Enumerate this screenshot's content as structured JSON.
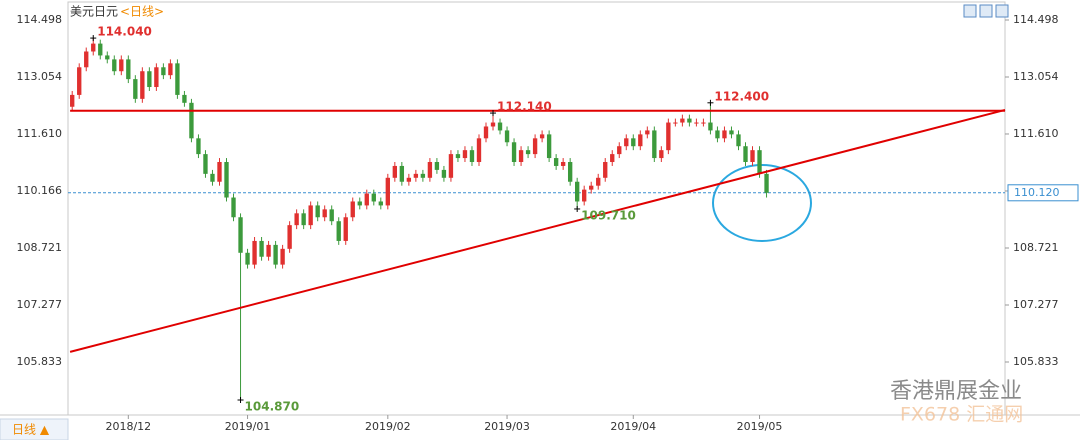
{
  "chart_data": {
    "type": "candlestick",
    "title": "美元日元",
    "period": "<日线>",
    "period_tab": "日线 ▲",
    "watermarks": [
      "香港鼎展金业",
      "FX678 汇通网"
    ],
    "up_color": "#e0302f",
    "down_color": "#3c9a3c",
    "ylim": [
      104.49,
      114.878
    ],
    "xlim": [
      -0.6,
      133
    ],
    "yticks": [
      114.498,
      113.054,
      {
        "value": 111.61,
        "label": "111.610"
      },
      110.166,
      108.721,
      107.277,
      105.833
    ],
    "xticks": [
      {
        "value": 8,
        "label": "2018/12"
      },
      {
        "value": 25,
        "label": "2019/01"
      },
      {
        "value": 45,
        "label": "2019/02"
      },
      {
        "value": 62,
        "label": "2019/03"
      },
      {
        "value": 80,
        "label": "2019/04"
      },
      {
        "value": 98,
        "label": "2019/05"
      }
    ],
    "ohlc": [
      [
        112.3,
        112.7,
        112.2,
        112.6
      ],
      [
        112.6,
        113.4,
        112.5,
        113.3
      ],
      [
        113.3,
        113.8,
        113.2,
        113.7
      ],
      [
        113.7,
        114.04,
        113.6,
        113.9
      ],
      [
        113.9,
        114.0,
        113.5,
        113.6
      ],
      [
        113.6,
        113.7,
        113.4,
        113.5
      ],
      [
        113.5,
        113.6,
        113.1,
        113.2
      ],
      [
        113.2,
        113.6,
        113.1,
        113.5
      ],
      [
        113.5,
        113.6,
        112.9,
        113.0
      ],
      [
        113.0,
        113.1,
        112.4,
        112.5
      ],
      [
        112.5,
        113.3,
        112.4,
        113.2
      ],
      [
        113.2,
        113.3,
        112.7,
        112.8
      ],
      [
        112.8,
        113.4,
        112.7,
        113.3
      ],
      [
        113.3,
        113.4,
        113.0,
        113.1
      ],
      [
        113.1,
        113.5,
        113.0,
        113.4
      ],
      [
        113.4,
        113.5,
        112.5,
        112.6
      ],
      [
        112.6,
        112.7,
        112.3,
        112.4
      ],
      [
        112.4,
        112.5,
        111.4,
        111.5
      ],
      [
        111.5,
        111.6,
        111.0,
        111.1
      ],
      [
        111.1,
        111.2,
        110.5,
        110.6
      ],
      [
        110.6,
        110.7,
        110.3,
        110.4
      ],
      [
        110.4,
        111.0,
        110.3,
        110.9
      ],
      [
        110.9,
        111.0,
        109.9,
        110.0
      ],
      [
        110.0,
        110.1,
        109.4,
        109.5
      ],
      [
        109.5,
        109.6,
        104.87,
        108.6
      ],
      [
        108.6,
        108.7,
        108.2,
        108.3
      ],
      [
        108.3,
        109.0,
        108.2,
        108.9
      ],
      [
        108.9,
        109.0,
        108.4,
        108.5
      ],
      [
        108.5,
        108.9,
        108.4,
        108.8
      ],
      [
        108.8,
        108.9,
        108.2,
        108.3
      ],
      [
        108.3,
        108.8,
        108.2,
        108.7
      ],
      [
        108.7,
        109.4,
        108.6,
        109.3
      ],
      [
        109.3,
        109.7,
        109.2,
        109.6
      ],
      [
        109.6,
        109.7,
        109.2,
        109.3
      ],
      [
        109.3,
        109.9,
        109.2,
        109.8
      ],
      [
        109.8,
        109.9,
        109.4,
        109.5
      ],
      [
        109.5,
        109.8,
        109.4,
        109.7
      ],
      [
        109.7,
        109.8,
        109.3,
        109.4
      ],
      [
        109.4,
        109.5,
        108.8,
        108.9
      ],
      [
        108.9,
        109.6,
        108.8,
        109.5
      ],
      [
        109.5,
        110.0,
        109.4,
        109.9
      ],
      [
        109.9,
        110.0,
        109.7,
        109.8
      ],
      [
        109.8,
        110.2,
        109.7,
        110.1
      ],
      [
        110.1,
        110.2,
        109.8,
        109.9
      ],
      [
        109.9,
        110.0,
        109.7,
        109.8
      ],
      [
        109.8,
        110.6,
        109.7,
        110.5
      ],
      [
        110.5,
        110.9,
        110.4,
        110.8
      ],
      [
        110.8,
        110.9,
        110.3,
        110.4
      ],
      [
        110.4,
        110.6,
        110.3,
        110.5
      ],
      [
        110.5,
        110.7,
        110.4,
        110.6
      ],
      [
        110.6,
        110.7,
        110.4,
        110.5
      ],
      [
        110.5,
        111.0,
        110.4,
        110.9
      ],
      [
        110.9,
        111.0,
        110.6,
        110.7
      ],
      [
        110.7,
        110.8,
        110.4,
        110.5
      ],
      [
        110.5,
        111.2,
        110.4,
        111.1
      ],
      [
        111.1,
        111.2,
        110.9,
        111.0
      ],
      [
        111.0,
        111.3,
        110.9,
        111.2
      ],
      [
        111.2,
        111.3,
        110.8,
        110.9
      ],
      [
        110.9,
        111.6,
        110.8,
        111.5
      ],
      [
        111.5,
        111.9,
        111.4,
        111.8
      ],
      [
        111.8,
        112.14,
        111.7,
        111.9
      ],
      [
        111.9,
        112.0,
        111.6,
        111.7
      ],
      [
        111.7,
        111.8,
        111.3,
        111.4
      ],
      [
        111.4,
        111.5,
        110.8,
        110.9
      ],
      [
        110.9,
        111.3,
        110.8,
        111.2
      ],
      [
        111.2,
        111.3,
        111.0,
        111.1
      ],
      [
        111.1,
        111.6,
        111.0,
        111.5
      ],
      [
        111.5,
        111.7,
        111.4,
        111.6
      ],
      [
        111.6,
        111.7,
        110.9,
        111.0
      ],
      [
        111.0,
        111.1,
        110.7,
        110.8
      ],
      [
        110.8,
        111.0,
        110.7,
        110.9
      ],
      [
        110.9,
        111.0,
        110.3,
        110.4
      ],
      [
        110.4,
        110.5,
        109.71,
        109.9
      ],
      [
        109.9,
        110.3,
        109.8,
        110.2
      ],
      [
        110.2,
        110.4,
        110.1,
        110.3
      ],
      [
        110.3,
        110.6,
        110.2,
        110.5
      ],
      [
        110.5,
        111.0,
        110.4,
        110.9
      ],
      [
        110.9,
        111.2,
        110.8,
        111.1
      ],
      [
        111.1,
        111.4,
        111.0,
        111.3
      ],
      [
        111.3,
        111.6,
        111.2,
        111.5
      ],
      [
        111.5,
        111.6,
        111.2,
        111.3
      ],
      [
        111.3,
        111.7,
        111.2,
        111.6
      ],
      [
        111.6,
        111.8,
        111.5,
        111.7
      ],
      [
        111.7,
        111.8,
        110.9,
        111.0
      ],
      [
        111.0,
        111.3,
        110.9,
        111.2
      ],
      [
        111.2,
        112.0,
        111.1,
        111.9
      ],
      [
        111.9,
        112.0,
        111.8,
        111.9
      ],
      [
        111.9,
        112.1,
        111.8,
        112.0
      ],
      [
        112.0,
        112.1,
        111.8,
        111.9
      ],
      [
        111.9,
        112.0,
        111.8,
        111.9
      ],
      [
        111.9,
        112.0,
        111.8,
        111.9
      ],
      [
        111.9,
        112.4,
        111.6,
        111.7
      ],
      [
        111.7,
        111.8,
        111.4,
        111.5
      ],
      [
        111.5,
        111.8,
        111.4,
        111.7
      ],
      [
        111.7,
        111.8,
        111.5,
        111.6
      ],
      [
        111.6,
        111.7,
        111.2,
        111.3
      ],
      [
        111.3,
        111.4,
        110.8,
        110.9
      ],
      [
        110.9,
        111.3,
        110.8,
        111.2
      ],
      [
        111.2,
        111.3,
        110.5,
        110.6
      ],
      [
        110.6,
        110.7,
        110.0,
        110.12
      ]
    ],
    "annotations": [
      {
        "index": 3,
        "value": 114.04,
        "label": "114.040",
        "color": "#e0302f"
      },
      {
        "index": 60,
        "value": 112.14,
        "label": "112.140",
        "color": "#e0302f"
      },
      {
        "index": 91,
        "value": 112.4,
        "label": "112.400",
        "color": "#e0302f"
      },
      {
        "index": 72,
        "value": 109.71,
        "label": "109.710",
        "color": "#5a9a3a"
      },
      {
        "index": 24,
        "value": 104.87,
        "label": "104.870",
        "color": "#5a9a3a"
      }
    ],
    "trend_lines": [
      {
        "color": "#e00000",
        "x": [
          -0.3,
          133
        ],
        "y": [
          112.2,
          112.2
        ]
      },
      {
        "color": "#e00000",
        "x": [
          -0.3,
          133
        ],
        "y": [
          106.09,
          112.22
        ]
      }
    ],
    "last_price": {
      "value": 110.12,
      "label": "110.120",
      "color": "#3a8fd0"
    }
  }
}
